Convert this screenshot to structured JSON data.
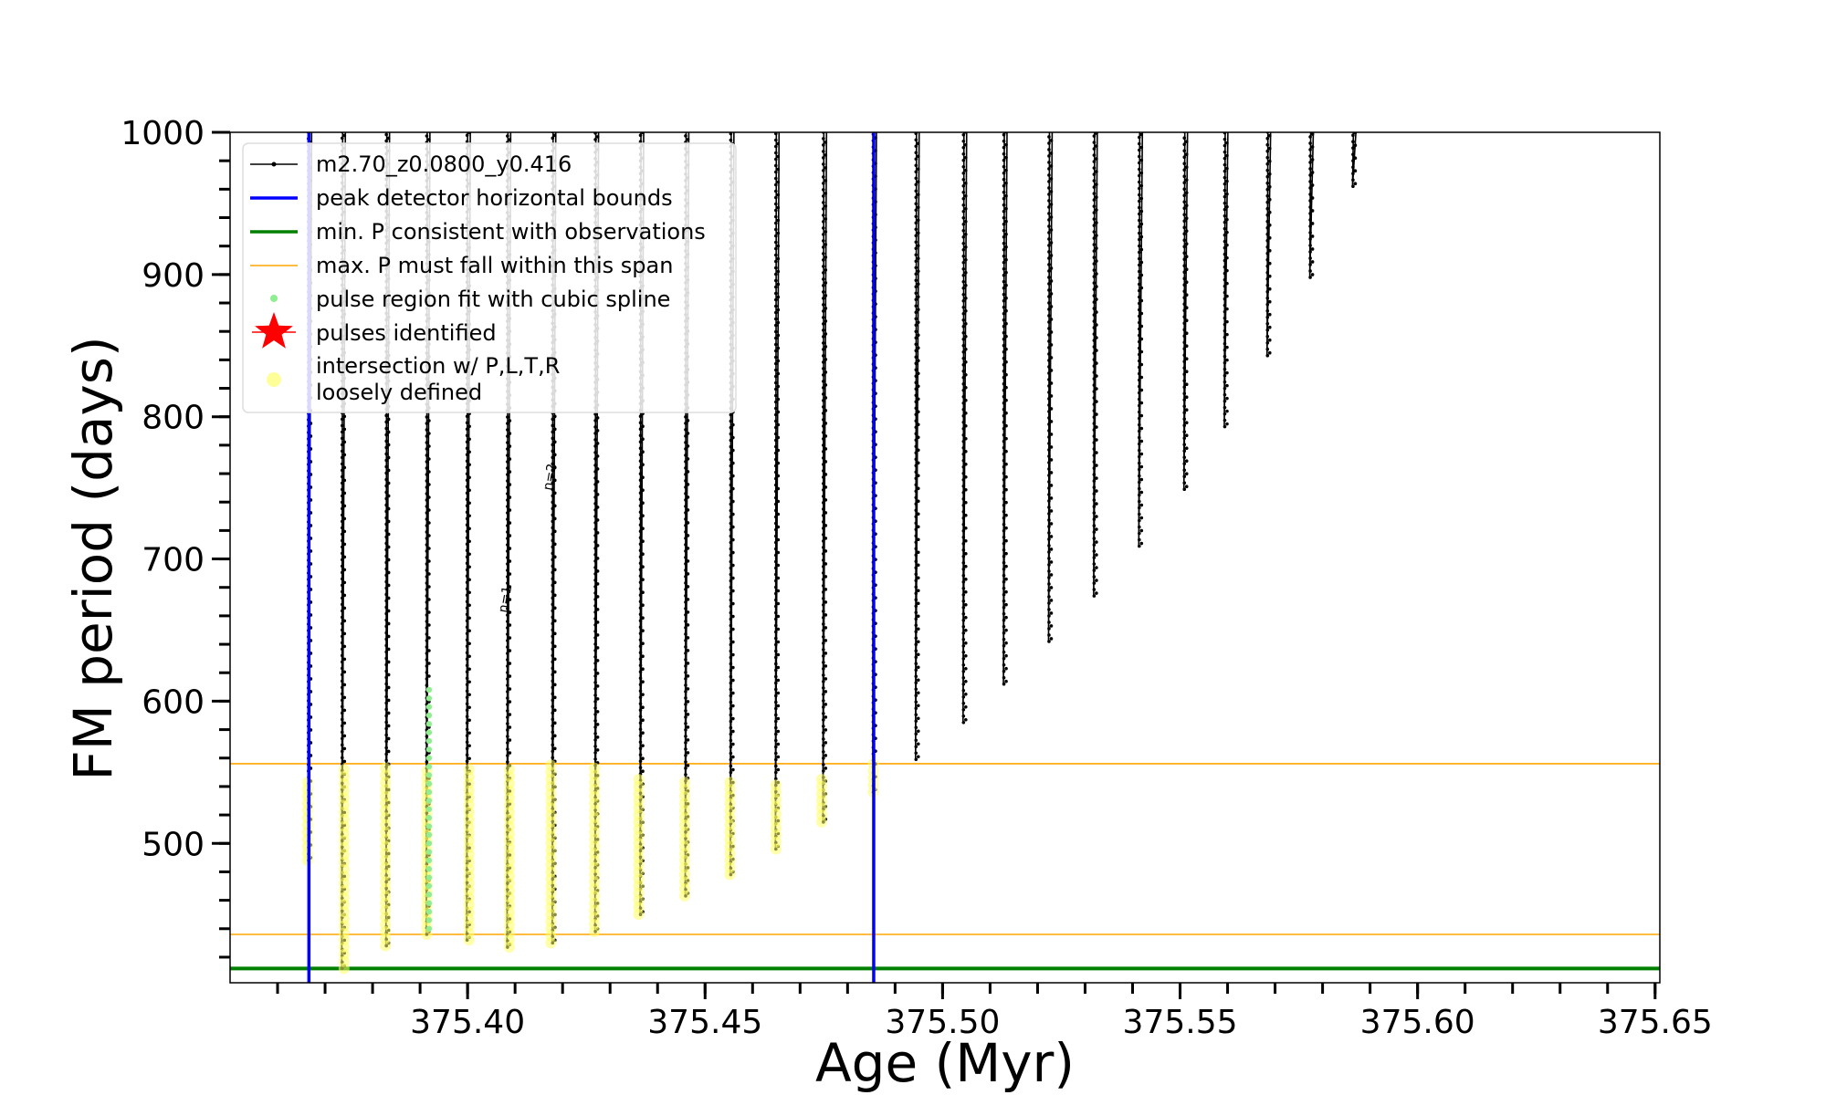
{
  "chart_data": {
    "type": "line",
    "xlabel": "Age (Myr)",
    "ylabel": "FM period (days)",
    "xlim": [
      375.35,
      375.651
    ],
    "ylim": [
      402,
      1000
    ],
    "x_ticks": [
      375.4,
      375.45,
      375.5,
      375.55,
      375.6,
      375.65
    ],
    "x_tick_labels": [
      "375.40",
      "375.45",
      "375.50",
      "375.55",
      "375.60",
      "375.65"
    ],
    "x_minor_step": 0.01,
    "y_ticks": [
      500,
      600,
      700,
      800,
      900,
      1000
    ],
    "y_tick_labels": [
      "500",
      "600",
      "700",
      "800",
      "900",
      "1000"
    ],
    "y_minor_step": 20,
    "reference_lines": [
      {
        "name": "peak detector horizontal bounds",
        "orientation": "vertical",
        "values": [
          375.3666,
          375.4855
        ],
        "color": "#0000ff"
      },
      {
        "name": "min. P consistent with observations",
        "orientation": "horizontal",
        "values": [
          412
        ],
        "color": "#008000"
      },
      {
        "name": "max. P must fall within this span",
        "orientation": "horizontal",
        "values": [
          436,
          556
        ],
        "color": "#ffa500"
      }
    ],
    "pulses": [
      {
        "age": 375.3666,
        "min_period": 488,
        "yellow": [
          488,
          545
        ]
      },
      {
        "age": 375.3737,
        "min_period": 412,
        "yellow": [
          412,
          555
        ]
      },
      {
        "age": 375.383,
        "min_period": 428,
        "yellow": [
          428,
          555
        ]
      },
      {
        "age": 375.3915,
        "min_period": 436,
        "yellow": [
          436,
          553
        ],
        "green": [
          440,
          610
        ]
      },
      {
        "age": 375.4,
        "min_period": 432,
        "yellow": [
          432,
          555
        ]
      },
      {
        "age": 375.4085,
        "min_period": 427,
        "yellow": [
          427,
          556
        ]
      },
      {
        "age": 375.418,
        "min_period": 430,
        "yellow": [
          430,
          556
        ]
      },
      {
        "age": 375.427,
        "min_period": 438,
        "yellow": [
          438,
          556
        ]
      },
      {
        "age": 375.4365,
        "min_period": 450,
        "yellow": [
          450,
          545
        ]
      },
      {
        "age": 375.446,
        "min_period": 463,
        "yellow": [
          463,
          545
        ]
      },
      {
        "age": 375.4555,
        "min_period": 478,
        "yellow": [
          478,
          545
        ]
      },
      {
        "age": 375.465,
        "min_period": 496,
        "yellow": [
          496,
          545
        ]
      },
      {
        "age": 375.475,
        "min_period": 515,
        "yellow": [
          515,
          548
        ]
      },
      {
        "age": 375.4855,
        "min_period": 536,
        "yellow": [
          536,
          556
        ]
      },
      {
        "age": 375.4945,
        "min_period": 559
      },
      {
        "age": 375.5045,
        "min_period": 585
      },
      {
        "age": 375.513,
        "min_period": 612
      },
      {
        "age": 375.5225,
        "min_period": 642
      },
      {
        "age": 375.532,
        "min_period": 674
      },
      {
        "age": 375.5415,
        "min_period": 709
      },
      {
        "age": 375.551,
        "min_period": 749
      },
      {
        "age": 375.5595,
        "min_period": 793
      },
      {
        "age": 375.5685,
        "min_period": 843
      },
      {
        "age": 375.5775,
        "min_period": 898
      },
      {
        "age": 375.5865,
        "min_period": 962
      }
    ],
    "annotations": [
      {
        "text": "n=1",
        "x": 375.4105,
        "y": 665
      },
      {
        "text": "n=2",
        "x": 375.4195,
        "y": 750
      }
    ]
  },
  "legend": {
    "items": [
      {
        "label": "m2.70_z0.0800_y0.416",
        "marker": "black-line-dot",
        "color": "#000000"
      },
      {
        "label": "peak detector horizontal bounds",
        "marker": "line",
        "color": "#0000ff"
      },
      {
        "label": "min. P consistent with observations",
        "marker": "line",
        "color": "#008000"
      },
      {
        "label": "max. P must fall within this span",
        "marker": "thin-line",
        "color": "#ffa500"
      },
      {
        "label": "pulse region fit with cubic spline",
        "marker": "dot",
        "color": "#90ee90"
      },
      {
        "label": "pulses identified",
        "marker": "star",
        "color": "#ff0000"
      },
      {
        "label": "intersection w/ P,L,T,R",
        "label2": "loosely defined",
        "marker": "circle",
        "color": "#ffff99"
      }
    ]
  }
}
